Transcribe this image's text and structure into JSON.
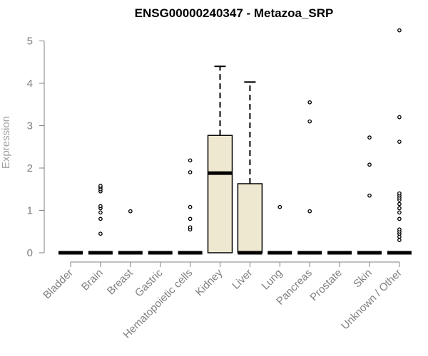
{
  "chart_data": {
    "type": "boxplot",
    "title": "ENSG00000240347 - Metazoa_SRP",
    "xlabel": "",
    "ylabel": "Expression",
    "ylim": [
      0,
      5.3
    ],
    "yticks": [
      0,
      1,
      2,
      3,
      4,
      5
    ],
    "grid": false,
    "legend": "none",
    "colors": {
      "box_fill": "#efe8d0",
      "stroke": "#000000",
      "axis": "#808080",
      "ylabel": "#a0a0a0"
    },
    "categories": [
      "Bladder",
      "Brain",
      "Breast",
      "Gastric",
      "Hematopoietic cells",
      "Kidney",
      "Liver",
      "Lung",
      "Pancreas",
      "Prostate",
      "Skin",
      "Unknown / Other"
    ],
    "boxes": [
      {
        "category": "Bladder",
        "q1": 0,
        "median": 0,
        "q3": 0,
        "whisker_low": 0,
        "whisker_high": 0,
        "outliers": []
      },
      {
        "category": "Brain",
        "q1": 0,
        "median": 0,
        "q3": 0,
        "whisker_low": 0,
        "whisker_high": 0,
        "outliers": [
          0.45,
          0.8,
          0.95,
          1.05,
          1.1,
          1.45,
          1.5,
          1.55,
          1.58
        ]
      },
      {
        "category": "Breast",
        "q1": 0,
        "median": 0,
        "q3": 0,
        "whisker_low": 0,
        "whisker_high": 0,
        "outliers": [
          0.98
        ]
      },
      {
        "category": "Gastric",
        "q1": 0,
        "median": 0,
        "q3": 0,
        "whisker_low": 0,
        "whisker_high": 0,
        "outliers": []
      },
      {
        "category": "Hematopoietic cells",
        "q1": 0,
        "median": 0,
        "q3": 0,
        "whisker_low": 0,
        "whisker_high": 0,
        "outliers": [
          0.55,
          0.6,
          0.8,
          1.08,
          1.9,
          2.18
        ]
      },
      {
        "category": "Kidney",
        "q1": 0,
        "median": 1.88,
        "q3": 2.77,
        "whisker_low": 0,
        "whisker_high": 4.4,
        "outliers": []
      },
      {
        "category": "Liver",
        "q1": 0,
        "median": 0,
        "q3": 1.63,
        "whisker_low": 0,
        "whisker_high": 4.03,
        "outliers": []
      },
      {
        "category": "Lung",
        "q1": 0,
        "median": 0,
        "q3": 0,
        "whisker_low": 0,
        "whisker_high": 0,
        "outliers": [
          1.08
        ]
      },
      {
        "category": "Pancreas",
        "q1": 0,
        "median": 0,
        "q3": 0,
        "whisker_low": 0,
        "whisker_high": 0,
        "outliers": [
          0.98,
          3.1,
          3.55
        ]
      },
      {
        "category": "Prostate",
        "q1": 0,
        "median": 0,
        "q3": 0,
        "whisker_low": 0,
        "whisker_high": 0,
        "outliers": []
      },
      {
        "category": "Skin",
        "q1": 0,
        "median": 0,
        "q3": 0,
        "whisker_low": 0,
        "whisker_high": 0,
        "outliers": [
          1.35,
          2.08,
          2.72
        ]
      },
      {
        "category": "Unknown / Other",
        "q1": 0,
        "median": 0,
        "q3": 0,
        "whisker_low": 0,
        "whisker_high": 0,
        "outliers": [
          0.3,
          0.38,
          0.45,
          0.5,
          0.55,
          0.8,
          0.95,
          1.05,
          1.15,
          1.25,
          1.3,
          1.35,
          1.4,
          2.62,
          3.2,
          5.25
        ]
      }
    ]
  }
}
